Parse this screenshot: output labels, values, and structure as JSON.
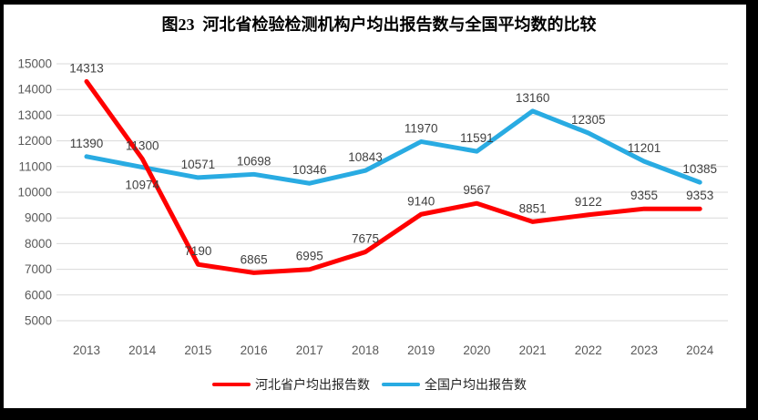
{
  "title": "图23  河北省检验检测机构户均出报告数与全国平均数的比较",
  "chart_data": {
    "type": "line",
    "title": "图23  河北省检验检测机构户均出报告数与全国平均数的比较",
    "categories": [
      "2013",
      "2014",
      "2015",
      "2016",
      "2017",
      "2018",
      "2019",
      "2020",
      "2021",
      "2022",
      "2023",
      "2024"
    ],
    "series": [
      {
        "name": "河北省户均出报告数",
        "color": "#FF0000",
        "values": [
          14313,
          11300,
          7190,
          6865,
          6995,
          7675,
          9140,
          9567,
          8851,
          9122,
          9355,
          9353
        ],
        "labels_below_indices": []
      },
      {
        "name": "全国户均出报告数",
        "color": "#29ABE2",
        "values": [
          11390,
          10974,
          10571,
          10698,
          10346,
          10843,
          11970,
          11591,
          13160,
          12305,
          11201,
          10385
        ],
        "labels_below_indices": [
          1
        ]
      }
    ],
    "xlabel": "",
    "ylabel": "",
    "ylim": [
      5000,
      15000
    ],
    "ytick_step": 1000,
    "yticks": [
      "5000",
      "6000",
      "7000",
      "8000",
      "9000",
      "10000",
      "11000",
      "12000",
      "13000",
      "14000",
      "15000"
    ],
    "grid": true,
    "data_labels_shown": true,
    "legend_position": "bottom"
  },
  "colors": {
    "hebei_line": "#FF0000",
    "national_line": "#29ABE2",
    "gridline": "#D9D9D9",
    "tick_label": "#595959",
    "data_label": "#404040",
    "frame_border": "#000000",
    "background": "#FFFFFF"
  }
}
